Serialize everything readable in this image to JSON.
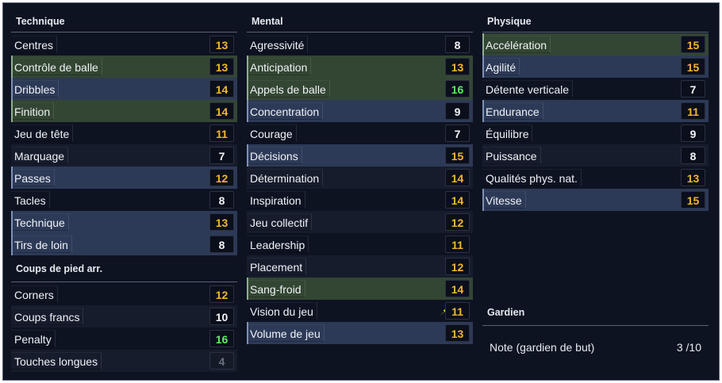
{
  "technique": {
    "title": "Technique",
    "rows": [
      {
        "label": "Centres",
        "value": "13",
        "color": "orange",
        "style": "plain"
      },
      {
        "label": "Contrôle de balle",
        "value": "13",
        "color": "orange",
        "style": "green"
      },
      {
        "label": "Dribbles",
        "value": "14",
        "color": "orange",
        "style": "blue"
      },
      {
        "label": "Finition",
        "value": "14",
        "color": "orange",
        "style": "green"
      },
      {
        "label": "Jeu de tête",
        "value": "11",
        "color": "orange",
        "style": "plain"
      },
      {
        "label": "Marquage",
        "value": "7",
        "color": "white",
        "style": "dark"
      },
      {
        "label": "Passes",
        "value": "12",
        "color": "orange",
        "style": "blue"
      },
      {
        "label": "Tacles",
        "value": "8",
        "color": "white",
        "style": "plain"
      },
      {
        "label": "Technique",
        "value": "13",
        "color": "orange",
        "style": "blue"
      },
      {
        "label": "Tirs de loin",
        "value": "8",
        "color": "white",
        "style": "blue"
      }
    ]
  },
  "setpieces": {
    "title": "Coups de pied arr.",
    "rows": [
      {
        "label": "Corners",
        "value": "12",
        "color": "orange",
        "style": "plain"
      },
      {
        "label": "Coups francs",
        "value": "10",
        "color": "white",
        "style": "dark"
      },
      {
        "label": "Penalty",
        "value": "16",
        "color": "green",
        "style": "plain"
      },
      {
        "label": "Touches longues",
        "value": "4",
        "color": "gray",
        "style": "dark"
      }
    ]
  },
  "mental": {
    "title": "Mental",
    "rows": [
      {
        "label": "Agressivité",
        "value": "8",
        "color": "white",
        "style": "plain"
      },
      {
        "label": "Anticipation",
        "value": "13",
        "color": "orange",
        "style": "green"
      },
      {
        "label": "Appels de balle",
        "value": "16",
        "color": "green",
        "style": "green"
      },
      {
        "label": "Concentration",
        "value": "9",
        "color": "white",
        "style": "blue"
      },
      {
        "label": "Courage",
        "value": "7",
        "color": "white",
        "style": "plain"
      },
      {
        "label": "Décisions",
        "value": "15",
        "color": "orange",
        "style": "blue"
      },
      {
        "label": "Détermination",
        "value": "14",
        "color": "orange",
        "style": "dark"
      },
      {
        "label": "Inspiration",
        "value": "14",
        "color": "orange",
        "style": "plain"
      },
      {
        "label": "Jeu collectif",
        "value": "12",
        "color": "orange",
        "style": "dark"
      },
      {
        "label": "Leadership",
        "value": "11",
        "color": "orange",
        "style": "plain"
      },
      {
        "label": "Placement",
        "value": "12",
        "color": "orange",
        "style": "dark"
      },
      {
        "label": "Sang-froid",
        "value": "14",
        "color": "orange",
        "style": "green"
      },
      {
        "label": "Vision du jeu",
        "value": "11",
        "color": "orange",
        "style": "plain",
        "icon": "trend-up-arrow-icon"
      },
      {
        "label": "Volume de jeu",
        "value": "13",
        "color": "orange",
        "style": "blue"
      }
    ]
  },
  "physique": {
    "title": "Physique",
    "rows": [
      {
        "label": "Accélération",
        "value": "15",
        "color": "orange",
        "style": "green"
      },
      {
        "label": "Agilité",
        "value": "15",
        "color": "orange",
        "style": "blue"
      },
      {
        "label": "Détente verticale",
        "value": "7",
        "color": "white",
        "style": "plain"
      },
      {
        "label": "Endurance",
        "value": "11",
        "color": "orange",
        "style": "blue"
      },
      {
        "label": "Équilibre",
        "value": "9",
        "color": "white",
        "style": "plain"
      },
      {
        "label": "Puissance",
        "value": "8",
        "color": "white",
        "style": "dark"
      },
      {
        "label": "Qualités phys. nat.",
        "value": "13",
        "color": "orange",
        "style": "plain"
      },
      {
        "label": "Vitesse",
        "value": "15",
        "color": "orange",
        "style": "blue"
      }
    ]
  },
  "gardien": {
    "title": "Gardien",
    "label": "Note (gardien de but)",
    "value": "3 /10"
  },
  "colors": {
    "orange": "#f2b72d",
    "green": "#5ff065",
    "panel": "#0e1322"
  }
}
